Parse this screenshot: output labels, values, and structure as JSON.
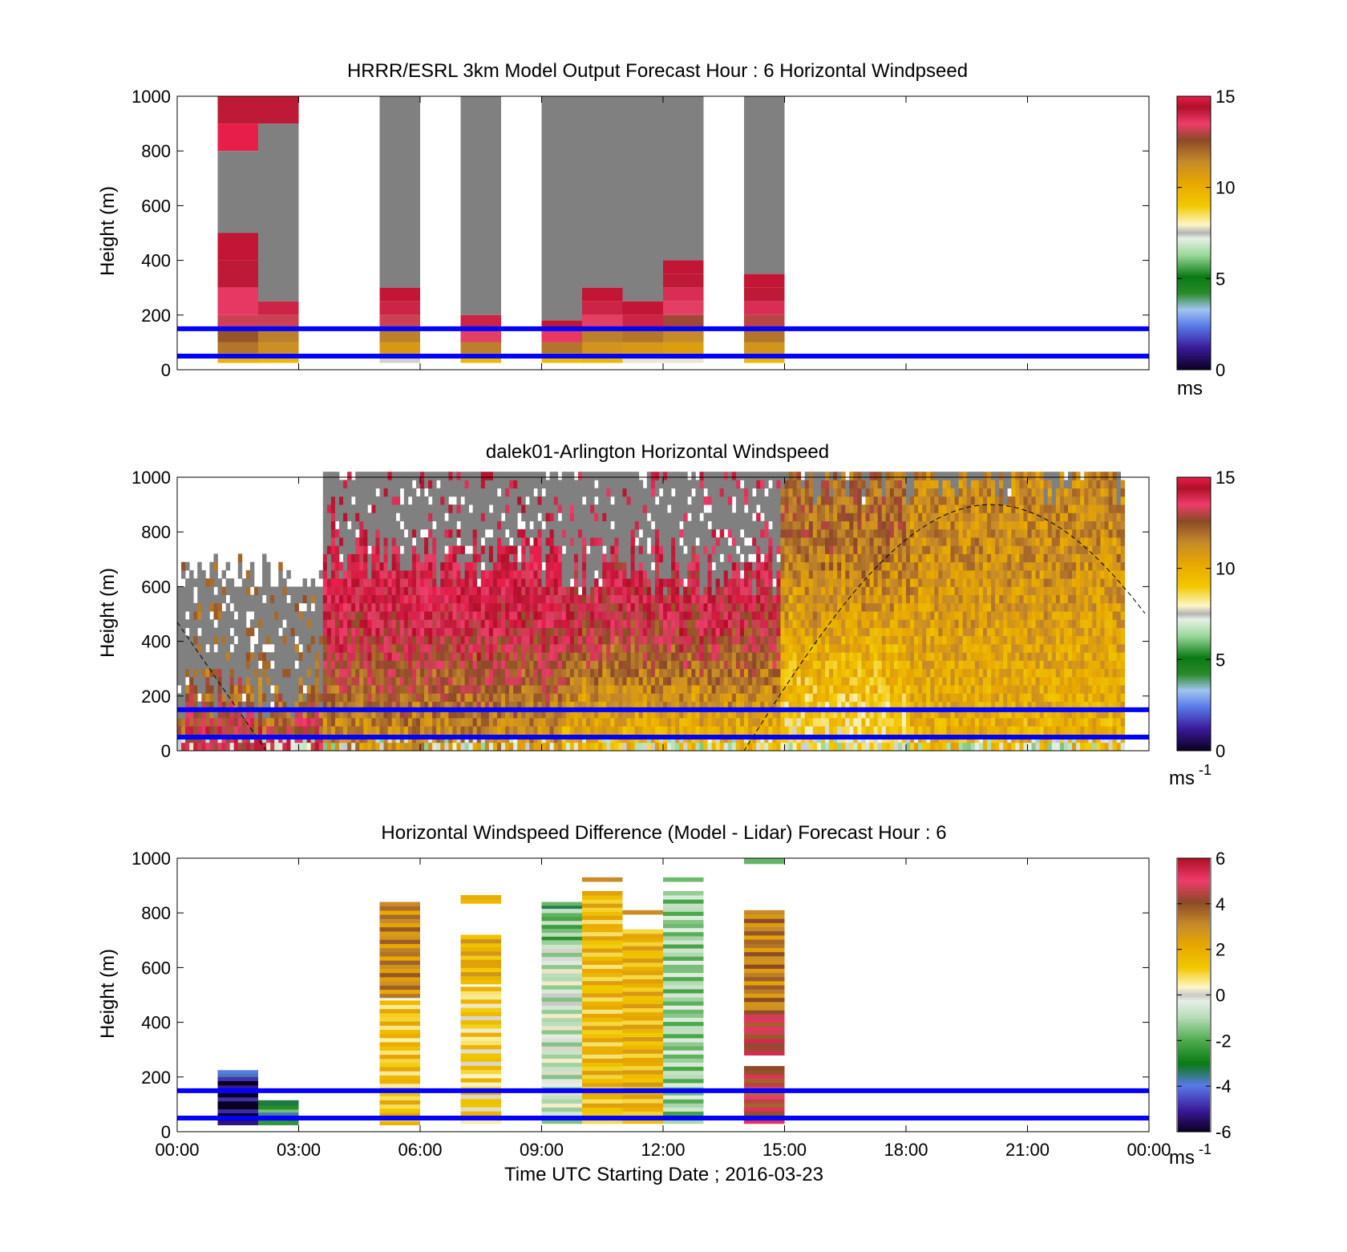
{
  "figure": {
    "x_ticks": [
      "00:00",
      "03:00",
      "06:00",
      "09:00",
      "12:00",
      "15:00",
      "18:00",
      "21:00",
      "00:00"
    ],
    "x_axis_label": "Time UTC  Starting Date ; 2016-03-23",
    "y_axis_label": "Height (m)",
    "y_ticks": [
      "0",
      "200",
      "400",
      "600",
      "800",
      "1000"
    ],
    "reference_line_color": "#0000ff",
    "reference_heights_m": [
      50,
      150
    ]
  },
  "chart_data": [
    {
      "id": "model",
      "type": "heatmap",
      "title": "HRRR/ESRL 3km Model Output   Forecast Hour : 6 Horizontal Windpseed",
      "ylabel": "Height (m)",
      "xlim_hours": [
        0,
        24
      ],
      "ylim": [
        0,
        1000
      ],
      "colorbar": {
        "ticks": [
          "0",
          "5",
          "10",
          "15"
        ],
        "min": 0,
        "max": 15,
        "unit_label": "ms",
        "unit_sup": "",
        "palette": "speed"
      },
      "columns": [
        {
          "t0": 1.0,
          "t1": 2.0,
          "top": 1000,
          "bands": [
            [
              900,
              1000,
              14.2
            ],
            [
              800,
              900,
              15
            ],
            [
              500,
              800,
              -1
            ],
            [
              400,
              500,
              14.6
            ],
            [
              300,
              400,
              14.2
            ],
            [
              200,
              300,
              13.6
            ],
            [
              150,
              200,
              13.2
            ],
            [
              100,
              150,
              12.4
            ],
            [
              60,
              100,
              11.8
            ],
            [
              40,
              60,
              10.8
            ],
            [
              25,
              40,
              9.8
            ]
          ]
        },
        {
          "t0": 2.0,
          "t1": 3.0,
          "top": 1000,
          "bands": [
            [
              900,
              1000,
              14.2
            ],
            [
              250,
              900,
              -1
            ],
            [
              200,
              250,
              14.0
            ],
            [
              150,
              200,
              13.2
            ],
            [
              100,
              150,
              11.6
            ],
            [
              60,
              100,
              11.2
            ],
            [
              40,
              60,
              10.6
            ],
            [
              25,
              40,
              9.6
            ]
          ]
        },
        {
          "t0": 5.0,
          "t1": 6.0,
          "top": 1000,
          "bands": [
            [
              300,
              1000,
              -1
            ],
            [
              250,
              300,
              14.6
            ],
            [
              200,
              250,
              14.0
            ],
            [
              150,
              200,
              13.2
            ],
            [
              100,
              150,
              11.6
            ],
            [
              60,
              100,
              10.8
            ],
            [
              40,
              60,
              10.2
            ],
            [
              25,
              40,
              7.6
            ]
          ]
        },
        {
          "t0": 7.0,
          "t1": 8.0,
          "top": 1000,
          "bands": [
            [
              200,
              1000,
              -1
            ],
            [
              150,
              200,
              14.0
            ],
            [
              100,
              150,
              13.4
            ],
            [
              60,
              100,
              11.6
            ],
            [
              40,
              60,
              10.4
            ],
            [
              25,
              40,
              9.6
            ]
          ]
        },
        {
          "t0": 9.0,
          "t1": 10.0,
          "top": 1000,
          "bands": [
            [
              180,
              1000,
              -1
            ],
            [
              150,
              180,
              14.6
            ],
            [
              100,
              150,
              13.6
            ],
            [
              60,
              100,
              11.8
            ],
            [
              40,
              60,
              10.6
            ],
            [
              25,
              40,
              9.4
            ]
          ]
        },
        {
          "t0": 10.0,
          "t1": 11.0,
          "top": 1000,
          "bands": [
            [
              300,
              1000,
              -1
            ],
            [
              250,
              300,
              14.6
            ],
            [
              200,
              250,
              14.0
            ],
            [
              150,
              200,
              13.4
            ],
            [
              100,
              150,
              11.6
            ],
            [
              60,
              100,
              11.0
            ],
            [
              40,
              60,
              10.4
            ],
            [
              25,
              40,
              9.6
            ]
          ]
        },
        {
          "t0": 11.0,
          "t1": 12.0,
          "top": 1000,
          "bands": [
            [
              250,
              1000,
              -1
            ],
            [
              200,
              250,
              14.6
            ],
            [
              150,
              200,
              14.0
            ],
            [
              100,
              150,
              11.8
            ],
            [
              60,
              100,
              10.8
            ],
            [
              40,
              60,
              10.0
            ],
            [
              25,
              40,
              7.8
            ]
          ]
        },
        {
          "t0": 12.0,
          "t1": 13.0,
          "top": 1000,
          "bands": [
            [
              400,
              1000,
              -1
            ],
            [
              350,
              400,
              14.6
            ],
            [
              300,
              350,
              14.2
            ],
            [
              250,
              300,
              13.8
            ],
            [
              200,
              250,
              13.4
            ],
            [
              150,
              200,
              12.8
            ],
            [
              100,
              150,
              11.4
            ],
            [
              60,
              100,
              10.6
            ],
            [
              40,
              60,
              9.8
            ],
            [
              25,
              40,
              7.8
            ]
          ]
        },
        {
          "t0": 14.0,
          "t1": 15.0,
          "top": 1000,
          "bands": [
            [
              350,
              1000,
              -1
            ],
            [
              300,
              350,
              14.6
            ],
            [
              250,
              300,
              14.2
            ],
            [
              200,
              250,
              13.8
            ],
            [
              150,
              200,
              13.0
            ],
            [
              100,
              150,
              11.8
            ],
            [
              60,
              100,
              11.0
            ],
            [
              40,
              60,
              10.2
            ],
            [
              25,
              40,
              9.6
            ]
          ]
        }
      ]
    },
    {
      "id": "lidar",
      "type": "heatmap",
      "title": "dalek01-Arlington  Horizontal Windspeed",
      "ylabel": "Height (m)",
      "xlim_hours": [
        0,
        24
      ],
      "ylim": [
        0,
        1000
      ],
      "colorbar": {
        "ticks": [
          "0",
          "5",
          "10",
          "15"
        ],
        "min": 0,
        "max": 15,
        "unit_label": "ms",
        "unit_sup": "-1",
        "palette": "speed"
      },
      "zones": [
        {
          "t0": 0.0,
          "t1": 3.6,
          "surface": 13.8,
          "above": 12.0,
          "color_ceiling": 200,
          "gray_ceiling": 700
        },
        {
          "t0": 3.6,
          "t1": 9.4,
          "surface": 11.0,
          "above": 14.2,
          "color_ceiling": 700,
          "gray_ceiling": 1000
        },
        {
          "t0": 9.4,
          "t1": 14.8,
          "surface": 9.6,
          "above": 13.8,
          "color_ceiling": 650,
          "gray_ceiling": 1000
        },
        {
          "t0": 14.8,
          "t1": 18.0,
          "surface": 8.4,
          "above": 12.0,
          "color_ceiling": 1000,
          "gray_ceiling": 1000
        },
        {
          "t0": 18.0,
          "t1": 24.0,
          "surface": 9.8,
          "above": 11.2,
          "color_ceiling": 1000,
          "gray_ceiling": 1000
        }
      ],
      "data_end_hour": 23.4,
      "solar_curve": "dashed black sine-like curve"
    },
    {
      "id": "difference",
      "type": "heatmap",
      "title": "Horizontal Windspeed Difference (Model - Lidar) Forecast Hour : 6",
      "ylabel": "Height (m)",
      "xlim_hours": [
        0,
        24
      ],
      "ylim": [
        0,
        1000
      ],
      "colorbar": {
        "ticks": [
          "-6",
          "-4",
          "-2",
          "0",
          "2",
          "4",
          "6"
        ],
        "min": -6,
        "max": 6,
        "unit_label": "ms",
        "unit_sup": "-1",
        "palette": "diff"
      },
      "columns": [
        {
          "t0": 1.0,
          "t1": 2.0,
          "bands": [
            [
              200,
              225,
              -4.2
            ],
            [
              185,
              200,
              -5.2
            ],
            [
              25,
              185,
              -5.7
            ]
          ]
        },
        {
          "t0": 2.0,
          "t1": 3.0,
          "bands": [
            [
              95,
              115,
              -4.0
            ],
            [
              70,
              95,
              -2.4
            ],
            [
              25,
              70,
              -3.2
            ]
          ]
        },
        {
          "t0": 5.0,
          "t1": 6.0,
          "bands": [
            [
              490,
              840,
              3.0
            ],
            [
              25,
              480,
              1.4
            ]
          ]
        },
        {
          "t0": 7.0,
          "t1": 8.0,
          "bands": [
            [
              835,
              865,
              2.2
            ],
            [
              540,
              720,
              2.0
            ],
            [
              30,
              530,
              1.0
            ]
          ]
        },
        {
          "t0": 9.0,
          "t1": 10.0,
          "bands": [
            [
              815,
              840,
              -2.4
            ],
            [
              700,
              815,
              -1.6
            ],
            [
              30,
              700,
              -0.6
            ]
          ]
        },
        {
          "t0": 10.0,
          "t1": 11.0,
          "bands": [
            [
              915,
              930,
              3.8
            ],
            [
              30,
              880,
              1.6
            ]
          ]
        },
        {
          "t0": 11.0,
          "t1": 12.0,
          "bands": [
            [
              795,
              810,
              3.4
            ],
            [
              30,
              740,
              1.8
            ]
          ]
        },
        {
          "t0": 12.0,
          "t1": 13.0,
          "bands": [
            [
              915,
              930,
              -1.8
            ],
            [
              30,
              880,
              -1.2
            ]
          ]
        },
        {
          "t0": 14.0,
          "t1": 15.0,
          "bands": [
            [
              980,
              1000,
              -2.6
            ],
            [
              430,
              810,
              3.2
            ],
            [
              280,
              430,
              4.6
            ],
            [
              30,
              240,
              4.4
            ]
          ]
        }
      ]
    }
  ]
}
